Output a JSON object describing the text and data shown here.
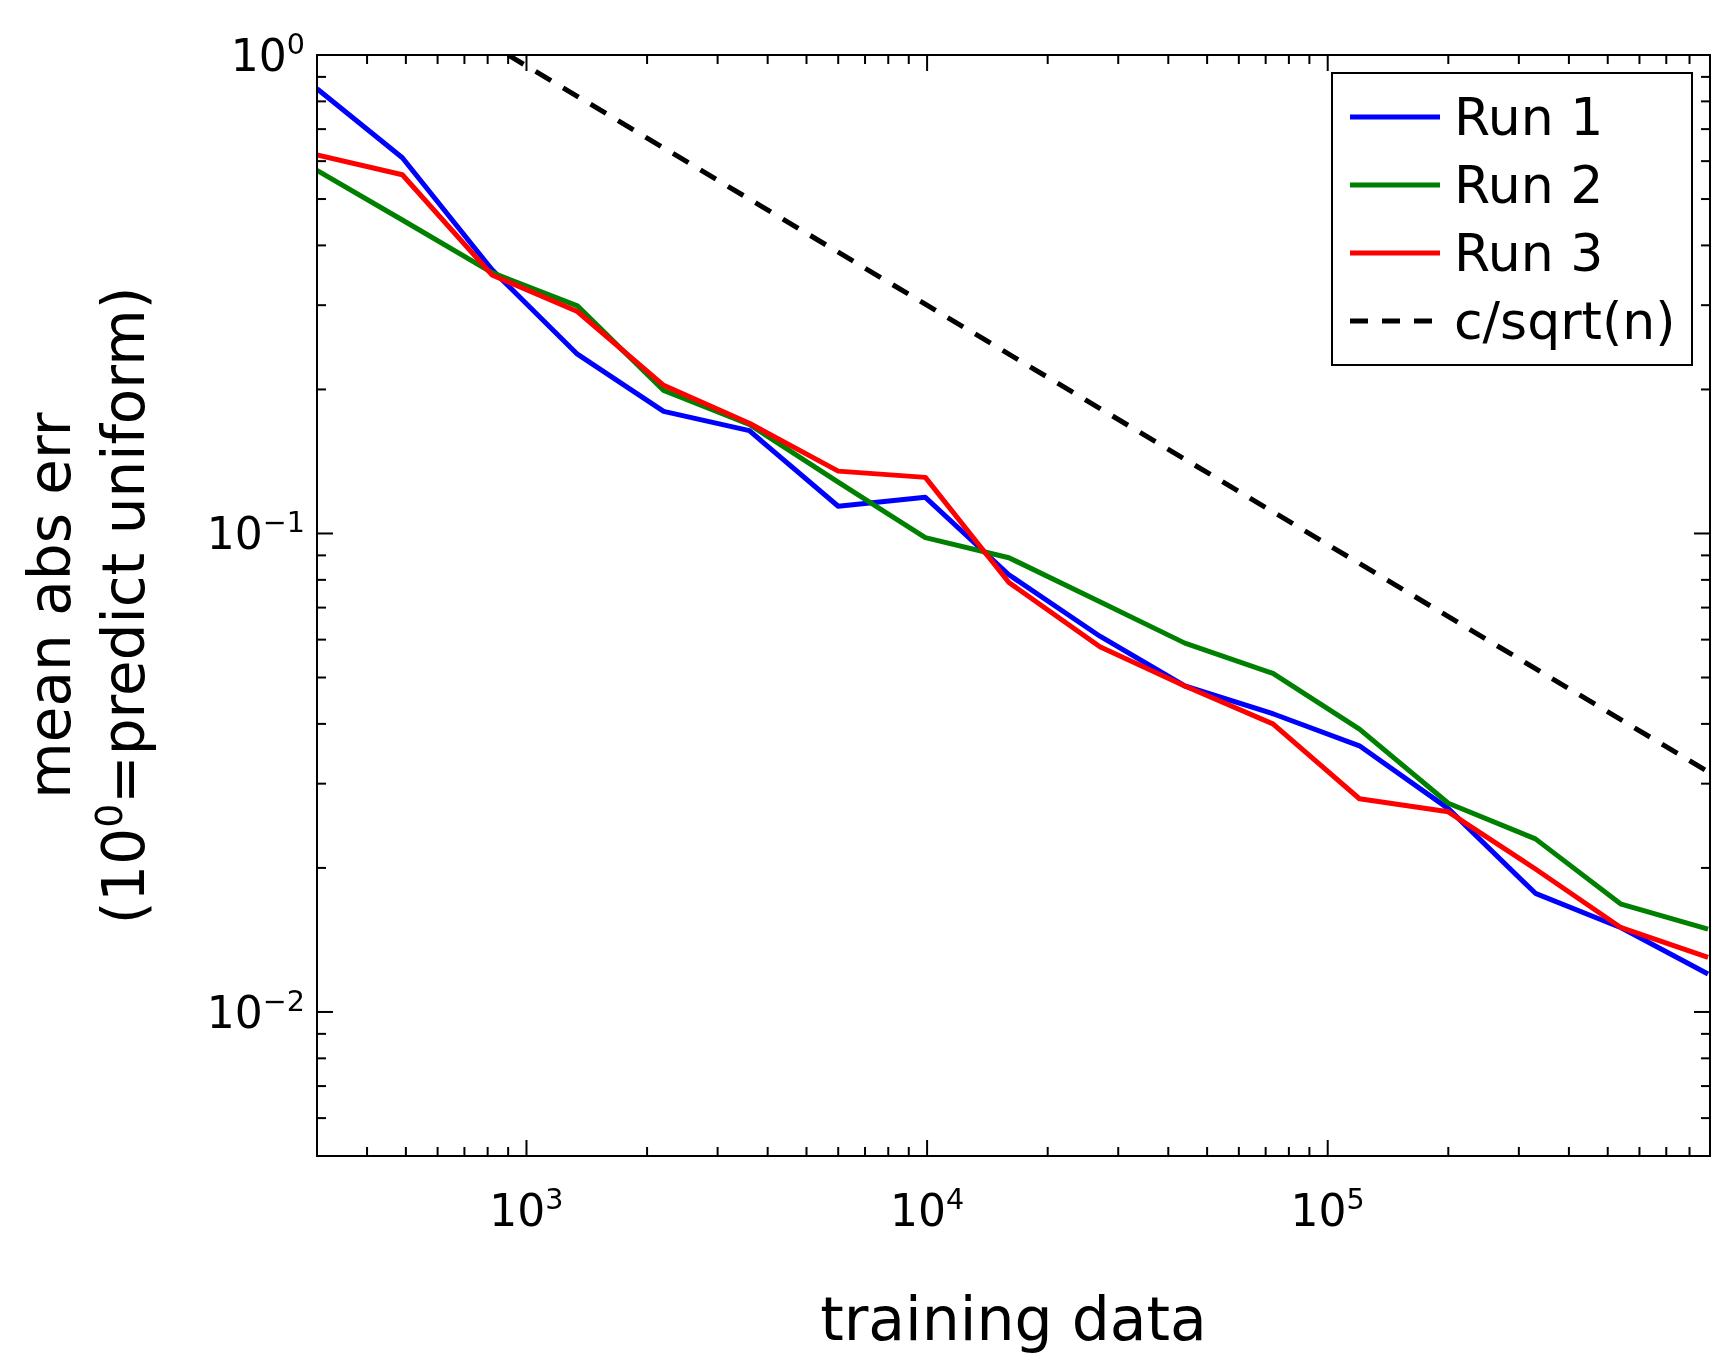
{
  "chart_data": {
    "type": "line",
    "xlabel": "training data",
    "ylabel": "mean abs err\n(10$^{0}$=predict uniform)",
    "log": "xy",
    "grid": false,
    "legend": "top right",
    "line_style": "solid",
    "xlim": [
      300,
      900000
    ],
    "ylim": [
      0.005,
      1
    ],
    "xticks": [
      {
        "value": 400,
        "label": null
      },
      {
        "value": 500,
        "label": null
      },
      {
        "value": 600,
        "label": null
      },
      {
        "value": 700,
        "label": null
      },
      {
        "value": 800,
        "label": null
      },
      {
        "value": 900,
        "label": null
      },
      {
        "value": 1000,
        "label": "10$^{3}$"
      },
      {
        "value": 2000,
        "label": null
      },
      {
        "value": 3000,
        "label": null
      },
      {
        "value": 4000,
        "label": null
      },
      {
        "value": 5000,
        "label": null
      },
      {
        "value": 6000,
        "label": null
      },
      {
        "value": 7000,
        "label": null
      },
      {
        "value": 8000,
        "label": null
      },
      {
        "value": 9000,
        "label": null
      },
      {
        "value": 10000,
        "label": "10$^{4}$"
      },
      {
        "value": 20000,
        "label": null
      },
      {
        "value": 30000,
        "label": null
      },
      {
        "value": 40000,
        "label": null
      },
      {
        "value": 50000,
        "label": null
      },
      {
        "value": 60000,
        "label": null
      },
      {
        "value": 70000,
        "label": null
      },
      {
        "value": 80000,
        "label": null
      },
      {
        "value": 90000,
        "label": null
      },
      {
        "value": 100000,
        "label": "10$^{5}$"
      },
      {
        "value": 200000,
        "label": null
      },
      {
        "value": 300000,
        "label": null
      },
      {
        "value": 400000,
        "label": null
      },
      {
        "value": 500000,
        "label": null
      },
      {
        "value": 600000,
        "label": null
      },
      {
        "value": 700000,
        "label": null
      },
      {
        "value": 800000,
        "label": null
      }
    ],
    "yticks": [
      {
        "value": 0.006,
        "label": null
      },
      {
        "value": 0.007,
        "label": null
      },
      {
        "value": 0.008,
        "label": null
      },
      {
        "value": 0.009,
        "label": null
      },
      {
        "value": 0.01,
        "label": "10$^{−2}$"
      },
      {
        "value": 0.02,
        "label": null
      },
      {
        "value": 0.03,
        "label": null
      },
      {
        "value": 0.04,
        "label": null
      },
      {
        "value": 0.05,
        "label": null
      },
      {
        "value": 0.06,
        "label": null
      },
      {
        "value": 0.07,
        "label": null
      },
      {
        "value": 0.08,
        "label": null
      },
      {
        "value": 0.09,
        "label": null
      },
      {
        "value": 0.1,
        "label": "10$^{−1}$"
      },
      {
        "value": 0.2,
        "label": null
      },
      {
        "value": 0.3,
        "label": null
      },
      {
        "value": 0.4,
        "label": null
      },
      {
        "value": 0.5,
        "label": null
      },
      {
        "value": 0.6,
        "label": null
      },
      {
        "value": 0.7,
        "label": null
      },
      {
        "value": 0.8,
        "label": null
      },
      {
        "value": 0.9,
        "label": null
      },
      {
        "value": 1,
        "label": "10$^{0}$"
      }
    ],
    "x": [
      300,
      490,
      820,
      1340,
      2200,
      3600,
      6000,
      9900,
      16000,
      27000,
      44000,
      73000,
      120000,
      200000,
      330000,
      540000,
      890000
    ],
    "series": [
      {
        "name": "Run 1",
        "color": "#0000ff",
        "values": [
          0.85,
          0.61,
          0.356,
          0.237,
          0.18,
          0.164,
          0.114,
          0.119,
          0.082,
          0.061,
          0.048,
          0.042,
          0.036,
          0.0266,
          0.0177,
          0.015,
          0.012
        ]
      },
      {
        "name": "Run 2",
        "color": "#008000",
        "values": [
          0.574,
          0.452,
          0.351,
          0.299,
          0.199,
          0.169,
          0.128,
          0.098,
          0.089,
          0.072,
          0.059,
          0.051,
          0.039,
          0.0273,
          0.023,
          0.0168,
          0.0149
        ]
      },
      {
        "name": "Run 3",
        "color": "#ff0000",
        "values": [
          0.618,
          0.562,
          0.347,
          0.291,
          0.204,
          0.17,
          0.135,
          0.131,
          0.079,
          0.058,
          0.048,
          0.04,
          0.0279,
          0.0262,
          0.0199,
          0.015,
          0.013
        ]
      },
      {
        "name": "c/sqrt(n)",
        "color": "#000000",
        "line_style": "dashed",
        "x": [
          900,
          900000
        ],
        "values": [
          1,
          0.0316
        ]
      }
    ]
  }
}
